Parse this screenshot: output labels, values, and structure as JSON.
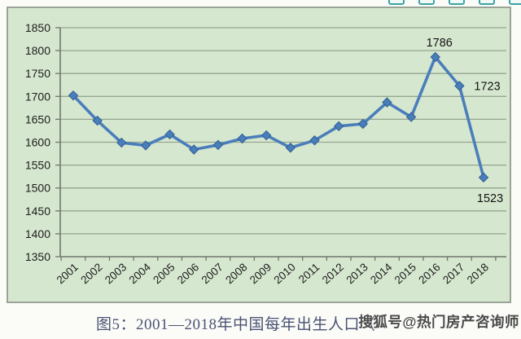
{
  "toolbar": {
    "icon_color": "#3aa3a3",
    "icons": [
      {
        "name": "toolbar-icon-1"
      },
      {
        "name": "toolbar-icon-2"
      },
      {
        "name": "toolbar-icon-3"
      },
      {
        "name": "toolbar-icon-4"
      },
      {
        "name": "toolbar-icon-5"
      }
    ]
  },
  "chart_data": {
    "type": "line",
    "title": "",
    "categories": [
      "2001",
      "2002",
      "2003",
      "2004",
      "2005",
      "2006",
      "2007",
      "2008",
      "2009",
      "2010",
      "2011",
      "2012",
      "2013",
      "2014",
      "2015",
      "2016",
      "2017",
      "2018"
    ],
    "values": [
      1702,
      1647,
      1599,
      1593,
      1617,
      1584,
      1594,
      1608,
      1615,
      1588,
      1604,
      1635,
      1640,
      1687,
      1655,
      1786,
      1723,
      1523
    ],
    "ylim": [
      1350,
      1850
    ],
    "yticks": [
      1850,
      1800,
      1750,
      1700,
      1650,
      1600,
      1550,
      1500,
      1450,
      1400,
      1350
    ],
    "grid": true,
    "legend": "none",
    "point_labels": [
      {
        "index": 15,
        "text": "1786",
        "position": "above"
      },
      {
        "index": 16,
        "text": "1723",
        "position": "right"
      },
      {
        "index": 17,
        "text": "1523",
        "position": "below"
      }
    ],
    "colors": {
      "line": "#4a7ebb",
      "marker_edge": "#2f5e94",
      "plot_background": "#d6e7cf",
      "gridline": "#94a591",
      "axis": "#6f776d",
      "tick_text": "#1d1d1d",
      "label_text": "#111111"
    }
  },
  "caption": {
    "text": "图5：2001—2018年中国每年出生人口（",
    "color": "#4a5273"
  },
  "watermark": {
    "text": "搜狐号@热门房产咨询师",
    "color": "#4a4a4a"
  }
}
